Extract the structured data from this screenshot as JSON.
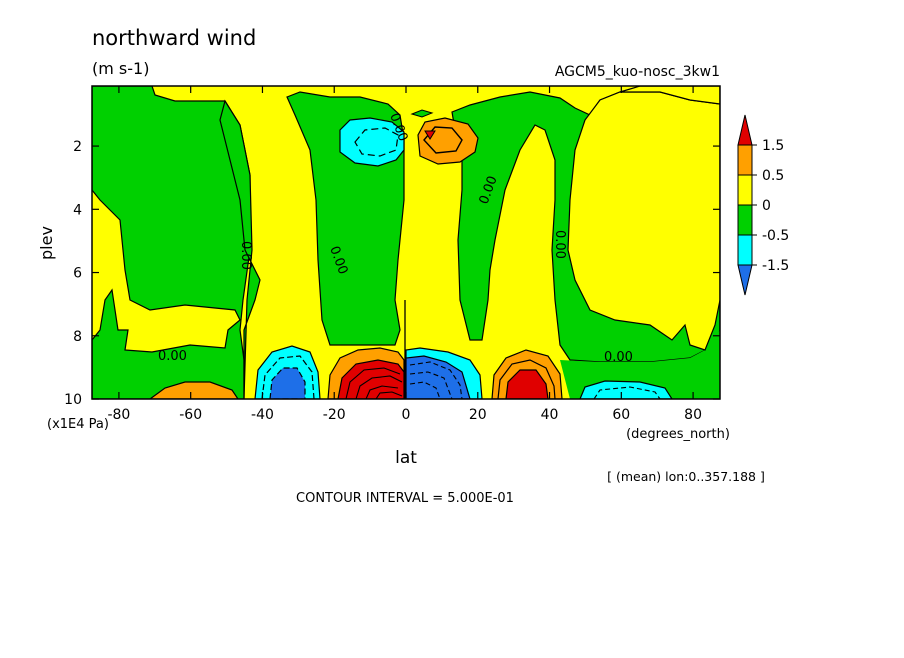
{
  "chart_data": {
    "type": "heatmap",
    "title": "northward wind",
    "units": "(m s-1)",
    "dataset": "AGCM5_kuo-nosc_3kw1",
    "xlabel": "lat",
    "x_units": "(degrees_north)",
    "ylabel": "plev",
    "y_units": "(x1E4 Pa)",
    "xlim": [
      -87.5,
      87.5
    ],
    "ylim": [
      10,
      0.1
    ],
    "y_inverted": true,
    "x_ticks": [
      "-80",
      "-60",
      "-40",
      "-20",
      "0",
      "20",
      "40",
      "60",
      "80"
    ],
    "y_ticks": [
      "2",
      "4",
      "6",
      "8",
      "10"
    ],
    "annotation": "[ (mean) lon:0..357.188 ]",
    "contour_interval_label": "CONTOUR INTERVAL = 5.000E-01",
    "contour_interval": 0.5,
    "contour_labels": [
      "0.00",
      "0.00",
      "0.00",
      "0.00",
      "0.00",
      "0.00",
      "0.00"
    ],
    "colorbar": {
      "levels": [
        "-1.5",
        "-0.5",
        "0",
        "0.5",
        "1.5"
      ],
      "colors": [
        "#1e6fe8",
        "#00ffff",
        "#00d000",
        "#ffff00",
        "#ffa000",
        "#e00000"
      ],
      "extend": "both"
    },
    "features": [
      {
        "name": "upper-level poleward flow center",
        "lat": 7,
        "plev": 1.6,
        "value": 1.6
      },
      {
        "name": "upper-level southward flow center",
        "lat": -7,
        "plev": 1.7,
        "value": -0.8
      },
      {
        "name": "low-level strong positive max",
        "lat": -5,
        "plev": 9.5,
        "value": 2.5
      },
      {
        "name": "low-level strong negative min",
        "lat": 5,
        "plev": 9.5,
        "value": -2.5
      },
      {
        "name": "low-level negative center south",
        "lat": -33,
        "plev": 9.5,
        "value": -1.6
      },
      {
        "name": "low-level positive center north",
        "lat": 33,
        "plev": 9.5,
        "value": 1.6
      },
      {
        "name": "low-level positive patch",
        "lat": -62,
        "plev": 9.8,
        "value": 0.8
      },
      {
        "name": "low-level negative patch",
        "lat": 62,
        "plev": 9.8,
        "value": -0.7
      }
    ]
  }
}
